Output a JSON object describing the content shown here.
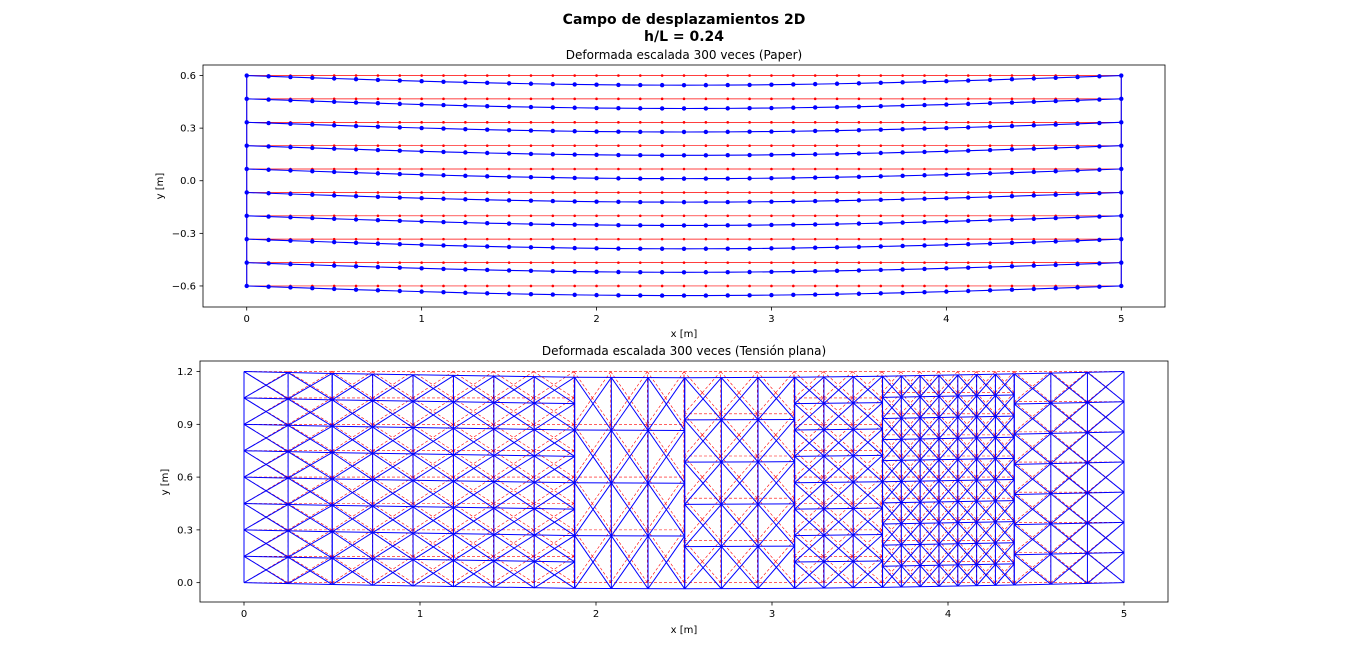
{
  "figure": {
    "title_line1": "Campo de desplazamientos 2D",
    "title_line2": "h/L = 0.24"
  },
  "colors": {
    "deformed": "#0000ff",
    "original": "#ff0000",
    "frame": "#000000"
  },
  "chart_data": [
    {
      "type": "line",
      "title": "Deformada escalada 300 veces (Paper)",
      "xlabel": "x [m]",
      "ylabel": "y [m]",
      "xlim": [
        -0.25,
        5.25
      ],
      "ylim": [
        -0.72,
        0.66
      ],
      "xticks": [
        0,
        1,
        2,
        3,
        4,
        5
      ],
      "yticks": [
        -0.6,
        -0.3,
        0.0,
        0.3,
        0.6
      ],
      "ytick_labels": [
        "−0.6",
        "−0.3",
        "0.0",
        "0.3",
        "0.6"
      ],
      "grid": false,
      "n_columns": 41,
      "x_start": 0,
      "x_end": 5,
      "rows_y": [
        0.6,
        0.467,
        0.333,
        0.2,
        0.067,
        -0.067,
        -0.2,
        -0.333,
        -0.467,
        -0.6
      ],
      "max_deflection": 0.055,
      "series": [
        {
          "role": "original"
        },
        {
          "role": "deformed"
        }
      ]
    },
    {
      "type": "line",
      "title": "Deformada escalada 300 veces (Tensión plana)",
      "xlabel": "x [m]",
      "ylabel": "y [m]",
      "xlim": [
        -0.25,
        5.25
      ],
      "ylim": [
        -0.11,
        1.26
      ],
      "xticks": [
        0,
        1,
        2,
        3,
        4,
        5
      ],
      "yticks": [
        0.0,
        0.3,
        0.6,
        0.9,
        1.2
      ],
      "ytick_labels": [
        "0.0",
        "0.3",
        "0.6",
        "0.9",
        "1.2"
      ],
      "grid": false,
      "max_deflection": 0.035,
      "mesh_blocks": [
        {
          "x0": 0.0,
          "x1": 0.5,
          "nx": 2,
          "ny": 8
        },
        {
          "x0": 0.5,
          "x1": 1.875,
          "nx": 6,
          "ny": 8
        },
        {
          "x0": 1.875,
          "x1": 2.5,
          "nx": 3,
          "ny": 4
        },
        {
          "x0": 2.5,
          "x1": 3.125,
          "nx": 3,
          "ny": 5
        },
        {
          "x0": 3.125,
          "x1": 3.625,
          "nx": 3,
          "ny": 8
        },
        {
          "x0": 3.625,
          "x1": 4.375,
          "nx": 7,
          "ny": 10
        },
        {
          "x0": 4.375,
          "x1": 5.0,
          "nx": 3,
          "ny": 7
        }
      ],
      "series": [
        {
          "role": "original"
        },
        {
          "role": "deformed"
        }
      ]
    }
  ]
}
